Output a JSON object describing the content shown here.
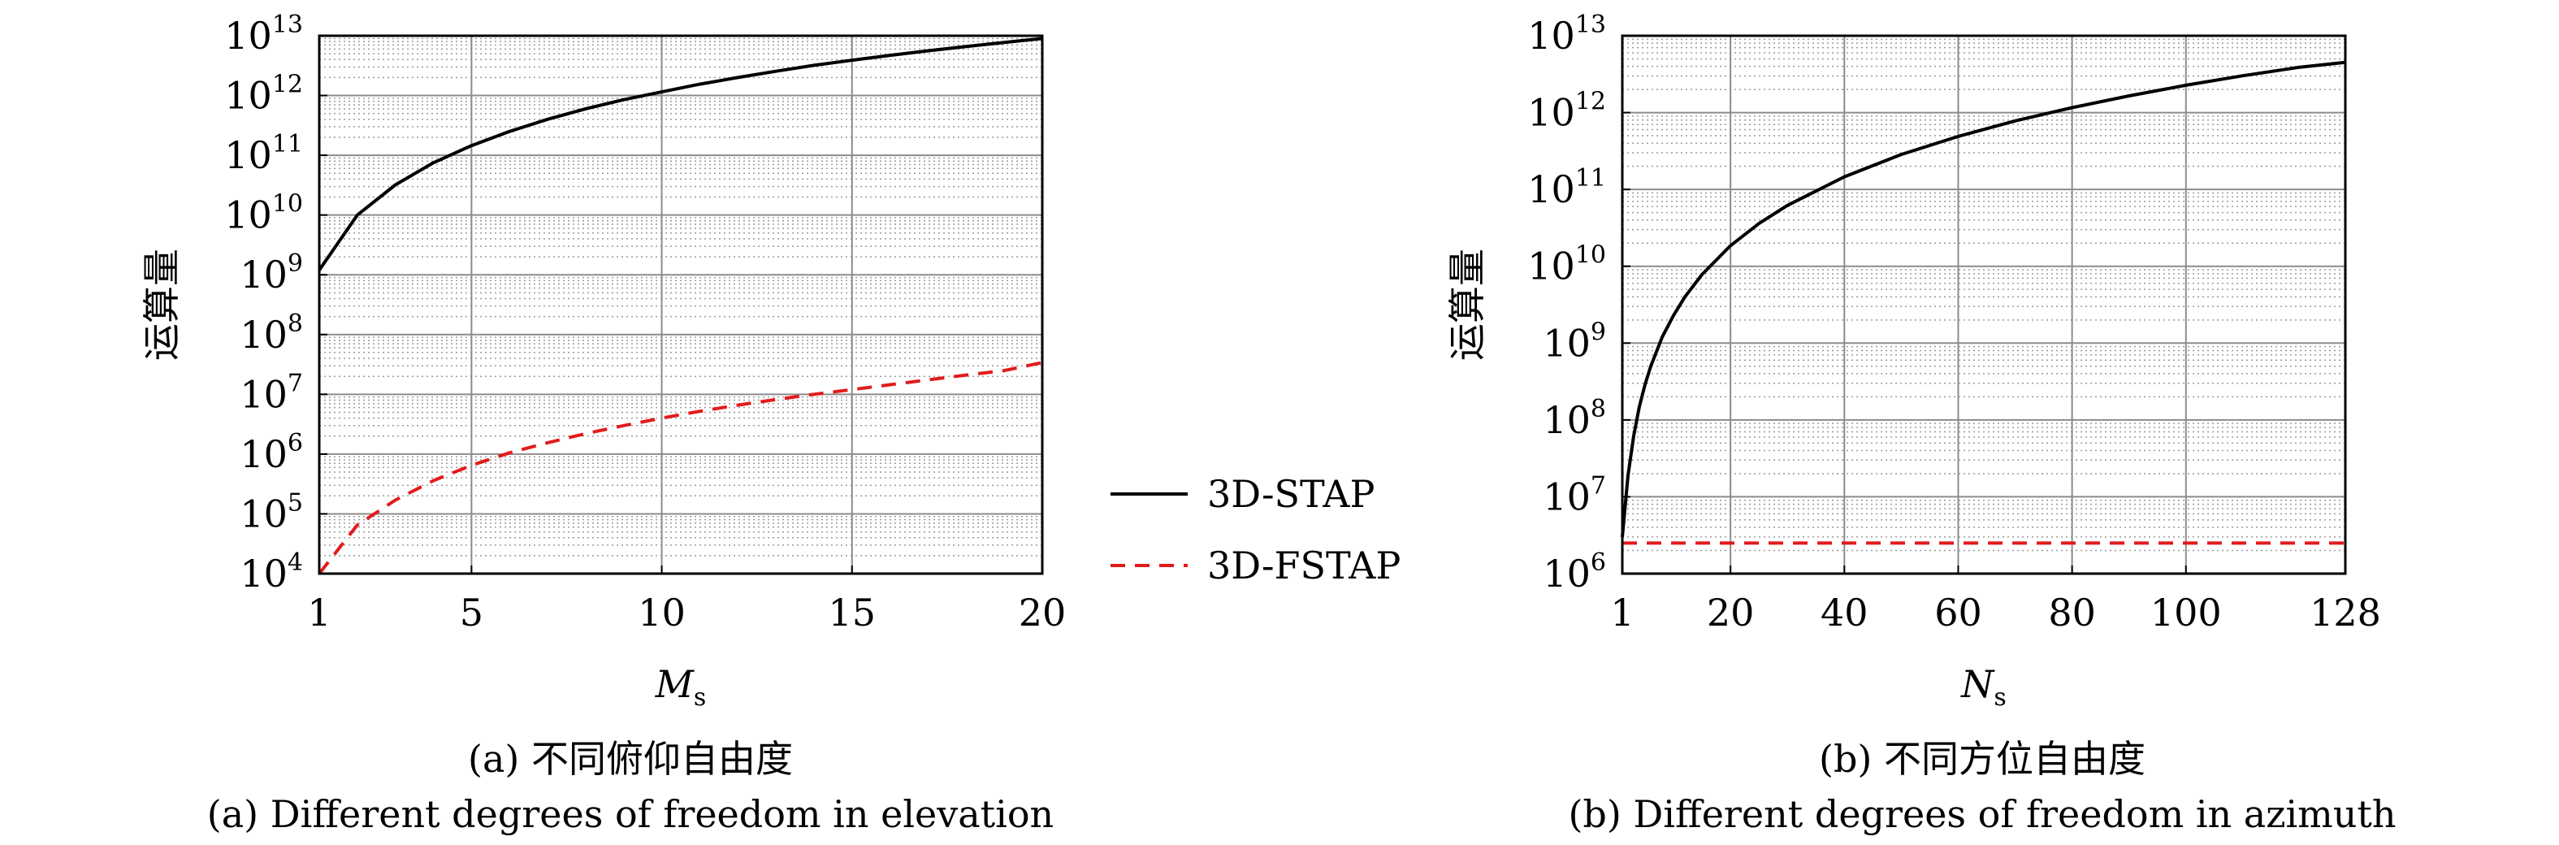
{
  "legend": {
    "items": [
      {
        "label": "3D-STAP",
        "color": "#000000",
        "dash": "solid"
      },
      {
        "label": "3D-FSTAP",
        "color": "#e31a1c",
        "dash": "dashed"
      }
    ]
  },
  "chart_data": [
    {
      "type": "line",
      "caption_cn": "(a) 不同俯仰自由度",
      "caption_en": "(a) Different degrees of freedom in elevation",
      "ylabel": "运算量",
      "xlabel_main": "M",
      "xlabel_sub": "s",
      "x_scale": "linear",
      "y_scale": "log",
      "xlim": [
        1,
        20
      ],
      "ylim": [
        10000,
        10000000000000
      ],
      "x_ticks": [
        1,
        5,
        10,
        15,
        20
      ],
      "y_tick_exponents": [
        4,
        5,
        6,
        7,
        8,
        9,
        10,
        11,
        12,
        13
      ],
      "grid": true,
      "series": [
        {
          "name": "3D-STAP",
          "x": [
            1,
            2,
            3,
            4,
            5,
            6,
            7,
            8,
            9,
            10,
            11,
            12,
            13,
            14,
            15,
            16,
            17,
            18,
            19,
            20
          ],
          "y": [
            1200000000.0,
            10000000000.0,
            32000000000.0,
            75000000000.0,
            145000000000.0,
            250000000000.0,
            400000000000.0,
            600000000000.0,
            850000000000.0,
            1150000000000.0,
            1550000000000.0,
            2000000000000.0,
            2550000000000.0,
            3200000000000.0,
            3900000000000.0,
            4700000000000.0,
            5600000000000.0,
            6600000000000.0,
            7700000000000.0,
            9000000000000.0
          ]
        },
        {
          "name": "3D-FSTAP",
          "x": [
            1,
            2,
            3,
            4,
            5,
            6,
            7,
            8,
            9,
            10,
            11,
            12,
            13,
            14,
            15,
            16,
            17,
            18,
            19,
            20
          ],
          "y": [
            10000.0,
            65000.0,
            170000.0,
            360000.0,
            650000.0,
            1050000.0,
            1550000.0,
            2200000.0,
            3000000.0,
            4000000.0,
            5200000.0,
            6600000.0,
            8200000.0,
            10000000.0,
            12000000.0,
            14500000.0,
            17500000.0,
            21000000.0,
            25000000.0,
            34000000.0
          ]
        }
      ]
    },
    {
      "type": "line",
      "caption_cn": "(b) 不同方位自由度",
      "caption_en": "(b) Different degrees of freedom in azimuth",
      "ylabel": "运算量",
      "xlabel_main": "N",
      "xlabel_sub": "s",
      "x_scale": "linear",
      "y_scale": "log",
      "xlim": [
        1,
        128
      ],
      "ylim": [
        1000000,
        10000000000000
      ],
      "x_ticks": [
        1,
        20,
        40,
        60,
        80,
        100,
        128
      ],
      "y_tick_exponents": [
        6,
        7,
        8,
        9,
        10,
        11,
        12,
        13
      ],
      "grid": true,
      "series": [
        {
          "name": "3D-STAP",
          "x": [
            1,
            2,
            3,
            4,
            5,
            6,
            8,
            10,
            12,
            15,
            20,
            25,
            30,
            40,
            50,
            60,
            70,
            80,
            90,
            100,
            110,
            120,
            128
          ],
          "y": [
            3000000.0,
            19000000.0,
            62000000.0,
            150000000.0,
            290000000.0,
            500000000.0,
            1200000000.0,
            2300000000.0,
            4000000000.0,
            7800000000.0,
            18500000000.0,
            36000000000.0,
            62000000000.0,
            146000000000.0,
            285000000000.0,
            490000000000.0,
            780000000000.0,
            1160000000000.0,
            1650000000000.0,
            2270000000000.0,
            3020000000000.0,
            3900000000000.0,
            4500000000000.0
          ]
        },
        {
          "name": "3D-FSTAP",
          "x": [
            1,
            128
          ],
          "y": [
            2500000.0,
            2500000.0
          ]
        }
      ]
    }
  ]
}
